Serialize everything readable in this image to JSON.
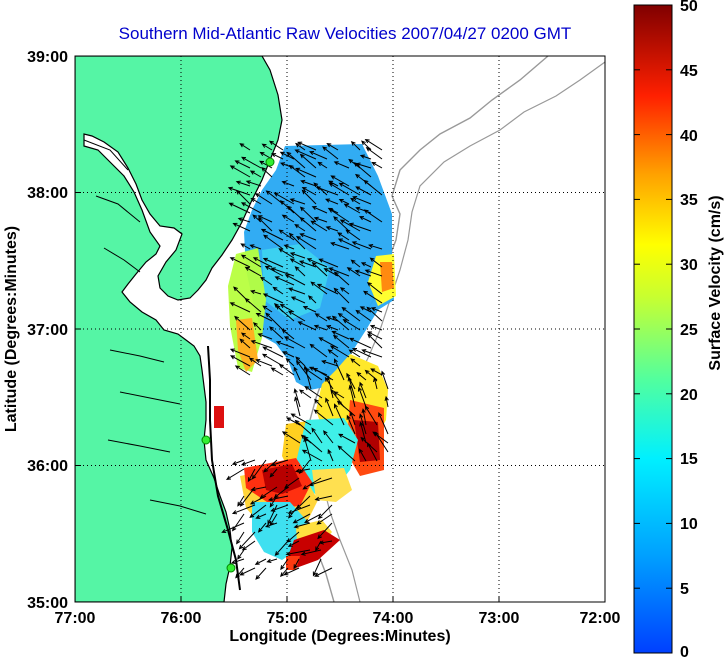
{
  "title": "Southern Mid-Atlantic Raw Velocities 2007/04/27 0200 GMT",
  "xlabel": "Longitude (Degrees:Minutes)",
  "ylabel": "Latitude (Degrees:Minutes)",
  "colorbar_label": "Surface Velocity (cm/s)",
  "x_ticks": [
    "77:00",
    "76:00",
    "75:00",
    "74:00",
    "73:00",
    "72:00"
  ],
  "y_ticks": [
    "39:00",
    "38:00",
    "37:00",
    "36:00",
    "35:00"
  ],
  "cb_ticks": [
    "50",
    "45",
    "40",
    "35",
    "30",
    "25",
    "20",
    "15",
    "10",
    "5",
    "0"
  ],
  "colors": {
    "land": "#55f5a5",
    "water": "#ffffff",
    "coast": "#000000",
    "bathymetry": "#999999",
    "title": "#0000cc",
    "station": "#33ee33"
  },
  "chart_data": {
    "type": "heatmap",
    "title": "Southern Mid-Atlantic Raw Velocities 2007/04/27 0200 GMT",
    "xlabel": "Longitude (Degrees:Minutes)",
    "ylabel": "Latitude (Degrees:Minutes)",
    "x_range_deg_west": [
      77,
      72
    ],
    "y_range_deg_north": [
      35,
      39
    ],
    "colorbar": {
      "label": "Surface Velocity (cm/s)",
      "range": [
        0,
        50
      ],
      "colormap": "jet"
    },
    "grid": true,
    "stations": [
      {
        "lon": -75.15,
        "lat": 38.22
      },
      {
        "lon": -75.67,
        "lat": 36.18
      },
      {
        "lon": -75.47,
        "lat": 35.25
      }
    ]
  }
}
